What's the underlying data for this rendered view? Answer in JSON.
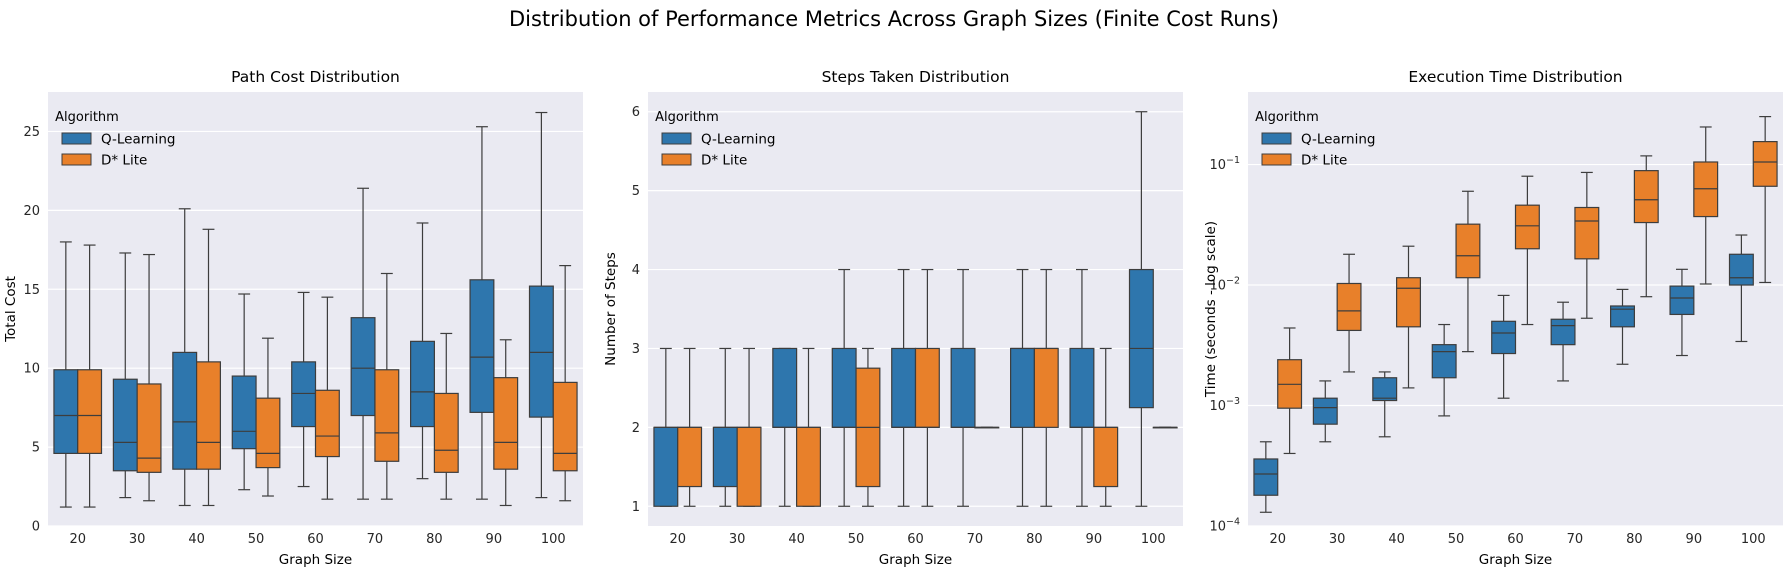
{
  "figure": {
    "title": "Distribution of Performance Metrics Across Graph Sizes (Finite Cost Runs)"
  },
  "colors": {
    "Q-Learning": "#2e76ad",
    "D* Lite": "#e8802a",
    "background": "#eaeaf2",
    "grid": "#ffffff",
    "edge": "#3d3d3d"
  },
  "chart_data": [
    {
      "type": "box",
      "title": "Path Cost Distribution",
      "xlabel": "Graph Size",
      "ylabel": "Total Cost",
      "yscale": "linear",
      "ylim": [
        0,
        27.5
      ],
      "yticks": [
        0,
        5,
        10,
        15,
        20,
        25
      ],
      "ytick_labels": [
        "0",
        "5",
        "10",
        "15",
        "20",
        "25"
      ],
      "categories": [
        "20",
        "30",
        "40",
        "50",
        "60",
        "70",
        "80",
        "90",
        "100"
      ],
      "legend": {
        "title": "Algorithm",
        "position": "top-left"
      },
      "grid": true,
      "series": [
        {
          "name": "Q-Learning",
          "boxes": [
            {
              "min": 1.2,
              "q1": 4.6,
              "median": 7.0,
              "q3": 9.9,
              "max": 18.0
            },
            {
              "min": 1.8,
              "q1": 3.5,
              "median": 5.3,
              "q3": 9.3,
              "max": 17.3
            },
            {
              "min": 1.3,
              "q1": 3.6,
              "median": 6.6,
              "q3": 11.0,
              "max": 20.1
            },
            {
              "min": 2.3,
              "q1": 4.9,
              "median": 6.0,
              "q3": 9.5,
              "max": 14.7
            },
            {
              "min": 2.5,
              "q1": 6.3,
              "median": 8.4,
              "q3": 10.4,
              "max": 14.8
            },
            {
              "min": 1.7,
              "q1": 7.0,
              "median": 10.0,
              "q3": 13.2,
              "max": 21.4
            },
            {
              "min": 3.0,
              "q1": 6.3,
              "median": 8.5,
              "q3": 11.7,
              "max": 19.2
            },
            {
              "min": 1.7,
              "q1": 7.2,
              "median": 10.7,
              "q3": 15.6,
              "max": 25.3
            },
            {
              "min": 1.8,
              "q1": 6.9,
              "median": 11.0,
              "q3": 15.2,
              "max": 26.2
            }
          ]
        },
        {
          "name": "D* Lite",
          "boxes": [
            {
              "min": 1.2,
              "q1": 4.6,
              "median": 7.0,
              "q3": 9.9,
              "max": 17.8
            },
            {
              "min": 1.6,
              "q1": 3.4,
              "median": 4.3,
              "q3": 9.0,
              "max": 17.2
            },
            {
              "min": 1.3,
              "q1": 3.6,
              "median": 5.3,
              "q3": 10.4,
              "max": 18.8
            },
            {
              "min": 1.9,
              "q1": 3.7,
              "median": 4.6,
              "q3": 8.1,
              "max": 11.9
            },
            {
              "min": 1.7,
              "q1": 4.4,
              "median": 5.7,
              "q3": 8.6,
              "max": 14.5
            },
            {
              "min": 1.7,
              "q1": 4.1,
              "median": 5.9,
              "q3": 9.9,
              "max": 16.0
            },
            {
              "min": 1.7,
              "q1": 3.4,
              "median": 4.8,
              "q3": 8.4,
              "max": 12.2
            },
            {
              "min": 1.3,
              "q1": 3.6,
              "median": 5.3,
              "q3": 9.4,
              "max": 11.8
            },
            {
              "min": 1.6,
              "q1": 3.5,
              "median": 4.6,
              "q3": 9.1,
              "max": 16.5
            }
          ]
        }
      ]
    },
    {
      "type": "box",
      "title": "Steps Taken Distribution",
      "xlabel": "Graph Size",
      "ylabel": "Number of Steps",
      "yscale": "linear",
      "ylim": [
        0.75,
        6.25
      ],
      "yticks": [
        1,
        2,
        3,
        4,
        5,
        6
      ],
      "ytick_labels": [
        "1",
        "2",
        "3",
        "4",
        "5",
        "6"
      ],
      "categories": [
        "20",
        "30",
        "40",
        "50",
        "60",
        "70",
        "80",
        "90",
        "100"
      ],
      "legend": {
        "title": "Algorithm",
        "position": "top-left"
      },
      "grid": true,
      "series": [
        {
          "name": "Q-Learning",
          "boxes": [
            {
              "min": 1,
              "q1": 1,
              "median": 2,
              "q3": 2,
              "max": 3
            },
            {
              "min": 1,
              "q1": 1.25,
              "median": 2,
              "q3": 2,
              "max": 3
            },
            {
              "min": 1,
              "q1": 2,
              "median": 2,
              "q3": 3,
              "max": 3
            },
            {
              "min": 1,
              "q1": 2,
              "median": 2,
              "q3": 3,
              "max": 4
            },
            {
              "min": 1,
              "q1": 2,
              "median": 2,
              "q3": 3,
              "max": 4
            },
            {
              "min": 1,
              "q1": 2,
              "median": 2,
              "q3": 3,
              "max": 4
            },
            {
              "min": 1,
              "q1": 2,
              "median": 3,
              "q3": 3,
              "max": 4
            },
            {
              "min": 1,
              "q1": 2,
              "median": 2,
              "q3": 3,
              "max": 4
            },
            {
              "min": 1,
              "q1": 2.25,
              "median": 3,
              "q3": 4,
              "max": 6
            }
          ]
        },
        {
          "name": "D* Lite",
          "boxes": [
            {
              "min": 1,
              "q1": 1.25,
              "median": 2,
              "q3": 2,
              "max": 3
            },
            {
              "min": 1,
              "q1": 1,
              "median": 2,
              "q3": 2,
              "max": 3
            },
            {
              "min": 1,
              "q1": 1,
              "median": 2,
              "q3": 2,
              "max": 3
            },
            {
              "min": 1,
              "q1": 1.25,
              "median": 2,
              "q3": 2.75,
              "max": 3
            },
            {
              "min": 1,
              "q1": 2,
              "median": 2,
              "q3": 3,
              "max": 4
            },
            {
              "min": 2,
              "q1": 2,
              "median": 2,
              "q3": 2,
              "max": 2
            },
            {
              "min": 1,
              "q1": 2,
              "median": 3,
              "q3": 3,
              "max": 4
            },
            {
              "min": 1,
              "q1": 1.25,
              "median": 2,
              "q3": 2,
              "max": 3
            },
            {
              "min": 2,
              "q1": 2,
              "median": 2,
              "q3": 2,
              "max": 2
            }
          ]
        }
      ]
    },
    {
      "type": "box",
      "title": "Execution Time Distribution",
      "xlabel": "Graph Size",
      "ylabel": "Time (seconds - log scale)",
      "yscale": "log",
      "ylim": [
        0.0001,
        0.4
      ],
      "yticks": [
        0.0001,
        0.001,
        0.01,
        0.1
      ],
      "ytick_labels": [
        {
          "base": "10",
          "exp": "−4"
        },
        {
          "base": "10",
          "exp": "−3"
        },
        {
          "base": "10",
          "exp": "−2"
        },
        {
          "base": "10",
          "exp": "−1"
        }
      ],
      "categories": [
        "20",
        "30",
        "40",
        "50",
        "60",
        "70",
        "80",
        "90",
        "100"
      ],
      "legend": {
        "title": "Algorithm",
        "position": "top-left"
      },
      "grid": true,
      "series": [
        {
          "name": "Q-Learning",
          "boxes": [
            {
              "min": 0.00013,
              "q1": 0.00018,
              "median": 0.00027,
              "q3": 0.00036,
              "max": 0.0005
            },
            {
              "min": 0.0005,
              "q1": 0.0007,
              "median": 0.00096,
              "q3": 0.00115,
              "max": 0.0016
            },
            {
              "min": 0.00055,
              "q1": 0.0011,
              "median": 0.00115,
              "q3": 0.0017,
              "max": 0.0019
            },
            {
              "min": 0.00082,
              "q1": 0.0017,
              "median": 0.0028,
              "q3": 0.0032,
              "max": 0.0047
            },
            {
              "min": 0.00115,
              "q1": 0.0027,
              "median": 0.004,
              "q3": 0.005,
              "max": 0.0082
            },
            {
              "min": 0.0016,
              "q1": 0.0032,
              "median": 0.0046,
              "q3": 0.0052,
              "max": 0.0072
            },
            {
              "min": 0.0022,
              "q1": 0.0045,
              "median": 0.0063,
              "q3": 0.0067,
              "max": 0.0092
            },
            {
              "min": 0.0026,
              "q1": 0.0057,
              "median": 0.0078,
              "q3": 0.0098,
              "max": 0.0135
            },
            {
              "min": 0.0034,
              "q1": 0.01,
              "median": 0.0115,
              "q3": 0.018,
              "max": 0.026
            }
          ]
        },
        {
          "name": "D* Lite",
          "boxes": [
            {
              "min": 0.0004,
              "q1": 0.00095,
              "median": 0.0015,
              "q3": 0.0024,
              "max": 0.0044
            },
            {
              "min": 0.0019,
              "q1": 0.0042,
              "median": 0.0061,
              "q3": 0.0103,
              "max": 0.018
            },
            {
              "min": 0.0014,
              "q1": 0.0045,
              "median": 0.0094,
              "q3": 0.0115,
              "max": 0.021
            },
            {
              "min": 0.0028,
              "q1": 0.0115,
              "median": 0.0175,
              "q3": 0.032,
              "max": 0.06
            },
            {
              "min": 0.0047,
              "q1": 0.02,
              "median": 0.031,
              "q3": 0.046,
              "max": 0.08
            },
            {
              "min": 0.0053,
              "q1": 0.0165,
              "median": 0.034,
              "q3": 0.044,
              "max": 0.086
            },
            {
              "min": 0.008,
              "q1": 0.033,
              "median": 0.051,
              "q3": 0.089,
              "max": 0.118
            },
            {
              "min": 0.0102,
              "q1": 0.037,
              "median": 0.063,
              "q3": 0.105,
              "max": 0.205
            },
            {
              "min": 0.0105,
              "q1": 0.066,
              "median": 0.105,
              "q3": 0.155,
              "max": 0.25
            }
          ]
        }
      ]
    }
  ]
}
